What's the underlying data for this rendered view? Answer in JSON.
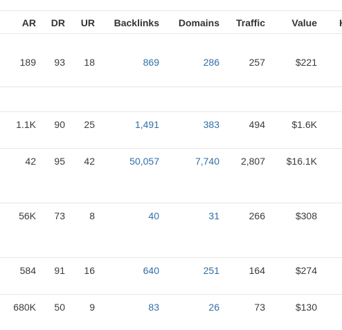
{
  "columns": {
    "ar": "AR",
    "dr": "DR",
    "ur": "UR",
    "backlinks": "Backlinks",
    "domains": "Domains",
    "traffic": "Traffic",
    "value": "Value",
    "next_partial": "H"
  },
  "rows": [
    {
      "ar": "189",
      "dr": "93",
      "ur": "18",
      "backlinks": "869",
      "domains": "286",
      "traffic": "257",
      "value": "$221"
    },
    {
      "ar": "1.1K",
      "dr": "90",
      "ur": "25",
      "backlinks": "1,491",
      "domains": "383",
      "traffic": "494",
      "value": "$1.6K"
    },
    {
      "ar": "42",
      "dr": "95",
      "ur": "42",
      "backlinks": "50,057",
      "domains": "7,740",
      "traffic": "2,807",
      "value": "$16.1K"
    },
    {
      "ar": "56K",
      "dr": "73",
      "ur": "8",
      "backlinks": "40",
      "domains": "31",
      "traffic": "266",
      "value": "$308"
    },
    {
      "ar": "584",
      "dr": "91",
      "ur": "16",
      "backlinks": "640",
      "domains": "251",
      "traffic": "164",
      "value": "$274"
    },
    {
      "ar": "680K",
      "dr": "50",
      "ur": "9",
      "backlinks": "83",
      "domains": "26",
      "traffic": "73",
      "value": "$130"
    }
  ],
  "colors": {
    "text": "#3a3a3a",
    "link": "#2f6ea8",
    "border": "#e6e6e6"
  }
}
